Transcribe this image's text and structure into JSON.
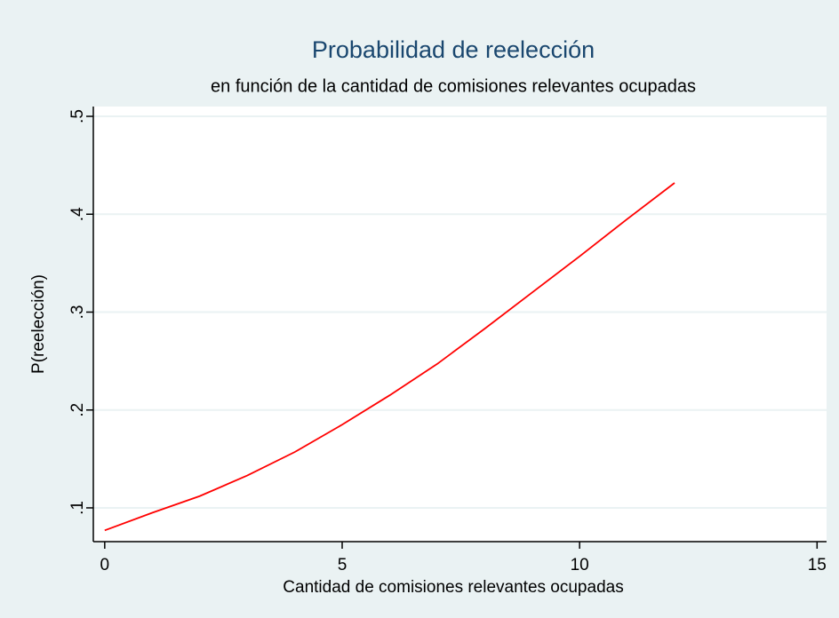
{
  "chart_data": {
    "type": "line",
    "title": "Probabilidad de reelección",
    "subtitle": "en función de la cantidad de comisiones relevantes ocupadas",
    "x_label": "Cantidad de comisiones relevantes ocupadas",
    "y_label": "P(reelección)",
    "x": [
      0,
      1,
      2,
      3,
      4,
      5,
      6,
      7,
      8,
      9,
      10,
      11,
      12
    ],
    "series": [
      {
        "name": "P(reelección)",
        "color": "#ff0000",
        "values": [
          0.077,
          0.095,
          0.112,
          0.133,
          0.157,
          0.185,
          0.215,
          0.247,
          0.283,
          0.32,
          0.357,
          0.395,
          0.432
        ]
      }
    ],
    "xlim": [
      -0.24,
      15.2
    ],
    "xticks": [
      0,
      5,
      10,
      15
    ],
    "ylim": [
      0.0655,
      0.51
    ],
    "yticks": [
      {
        "value": 0.1,
        "label": ".1"
      },
      {
        "value": 0.2,
        "label": ".2"
      },
      {
        "value": 0.3,
        "label": ".3"
      },
      {
        "value": 0.4,
        "label": ".4"
      },
      {
        "value": 0.5,
        "label": ".5"
      }
    ],
    "grid": true
  }
}
